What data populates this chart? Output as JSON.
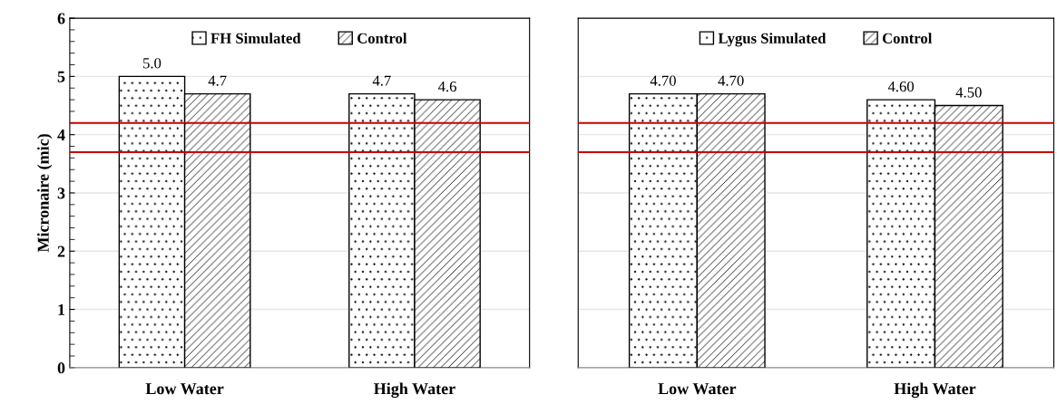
{
  "chart_data": [
    {
      "type": "bar",
      "ylabel": "Micronaire (mic)",
      "categories": [
        "Low Water",
        "High Water"
      ],
      "series": [
        {
          "name": "FH Simulated",
          "color": "#000000",
          "values": [
            5.0,
            4.7
          ],
          "value_labels": [
            "5.0",
            "4.7"
          ]
        },
        {
          "name": "Control",
          "color": "#000000",
          "values": [
            4.7,
            4.6
          ],
          "value_labels": [
            "4.7",
            "4.6"
          ]
        }
      ],
      "ylim": [
        0,
        6
      ],
      "yticks": [
        0,
        1,
        2,
        3,
        4,
        5,
        6
      ],
      "grid": "y",
      "legend": "top",
      "ref_lines": [
        {
          "axis": "y",
          "value": 4.2,
          "color": "#cc0000"
        },
        {
          "axis": "y",
          "value": 3.7,
          "color": "#cc0000"
        }
      ]
    },
    {
      "type": "bar",
      "categories": [
        "Low Water",
        "High Water"
      ],
      "series": [
        {
          "name": "Lygus Simulated",
          "color": "#000000",
          "values": [
            4.7,
            4.6
          ],
          "value_labels": [
            "4.70",
            "4.60"
          ]
        },
        {
          "name": "Control",
          "color": "#000000",
          "values": [
            4.7,
            4.5
          ],
          "value_labels": [
            "4.70",
            "4.50"
          ]
        }
      ],
      "ylim": [
        0,
        6
      ],
      "yticks": [
        0,
        1,
        2,
        3,
        4,
        5,
        6
      ],
      "tick_labels": "x",
      "grid": "y",
      "legend": "top",
      "ref_lines": [
        {
          "axis": "y",
          "value": 4.2,
          "color": "#cc0000"
        },
        {
          "axis": "y",
          "value": 3.7,
          "color": "#cc0000"
        }
      ]
    }
  ]
}
